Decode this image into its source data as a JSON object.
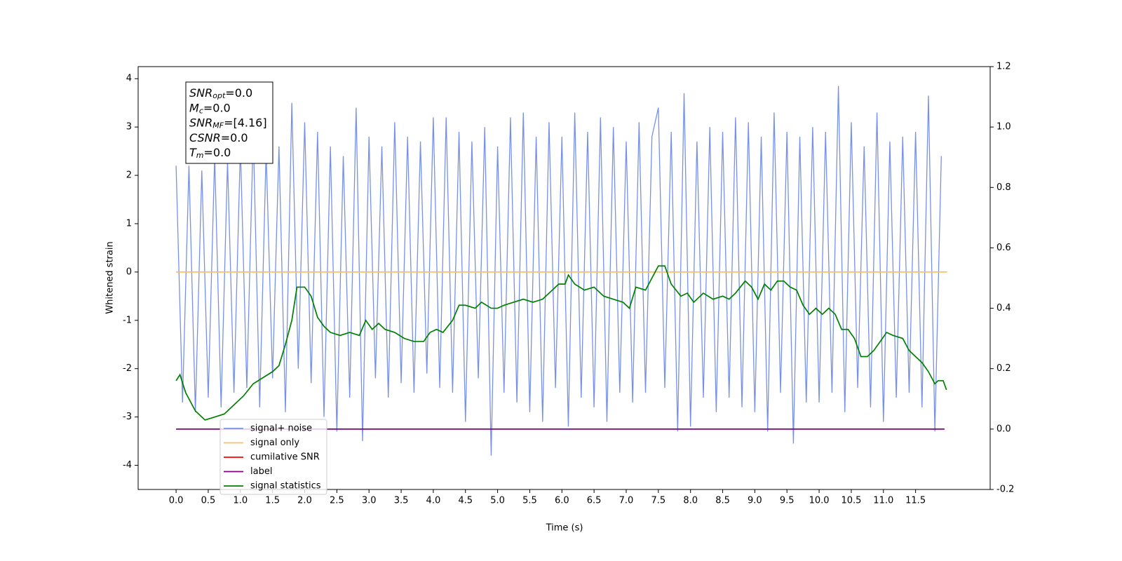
{
  "chart_data": {
    "type": "line",
    "xlabel": "Time (s)",
    "ylabel": "Whitened strain",
    "xlim": [
      -0.59,
      12.66
    ],
    "ylim": [
      -4.5,
      4.25
    ],
    "y2lim": [
      -0.2,
      1.2
    ],
    "xticks": [
      {
        "value": 0,
        "label": "0.0"
      },
      0.5,
      {
        "value": 1,
        "label": "1.0"
      },
      1.5,
      {
        "value": 2,
        "label": "2.0"
      },
      2.5,
      {
        "value": 3,
        "label": "3.0"
      },
      3.5,
      {
        "value": 4,
        "label": "4.0"
      },
      4.5,
      {
        "value": 5,
        "label": "5.0"
      },
      5.5,
      {
        "value": 6,
        "label": "6.0"
      },
      6.5,
      {
        "value": 7,
        "label": "7.0"
      },
      7.5,
      {
        "value": 8,
        "label": "8.0"
      },
      8.5,
      {
        "value": 9,
        "label": "9.0"
      },
      9.5,
      {
        "value": 10,
        "label": "10.0"
      },
      10.5,
      {
        "value": 11,
        "label": "11.0"
      },
      11.5
    ],
    "yticks": [
      -4,
      -3,
      -2,
      -1,
      0,
      1,
      2,
      3,
      4
    ],
    "y2ticks": [
      -0.2,
      {
        "value": 0,
        "label": "0.0"
      },
      0.2,
      0.4,
      0.6,
      0.8,
      {
        "value": 1,
        "label": "1.0"
      },
      1.2
    ],
    "annotation": [
      [
        "SNR",
        "opt",
        "=0.0"
      ],
      [
        "M",
        "c",
        "=0.0"
      ],
      [
        "SNR",
        "MF",
        "=[4.16]"
      ],
      [
        "CSNR",
        "=0.0"
      ],
      [
        "T",
        "m",
        "=0.0"
      ]
    ],
    "series": [
      {
        "name": "signal+ noise",
        "color": "#7891e8",
        "x": [
          0,
          0.1,
          0.2,
          0.3,
          0.4,
          0.5,
          0.6,
          0.7,
          0.8,
          0.9,
          1,
          1.1,
          1.2,
          1.3,
          1.4,
          1.5,
          1.6,
          1.7,
          1.8,
          1.9,
          2,
          2.1,
          2.2,
          2.3,
          2.4,
          2.5,
          2.6,
          2.7,
          2.8,
          2.9,
          3,
          3.1,
          3.2,
          3.3,
          3.4,
          3.5,
          3.6,
          3.7,
          3.8,
          3.9,
          4,
          4.1,
          4.2,
          4.3,
          4.4,
          4.5,
          4.6,
          4.7,
          4.8,
          4.9,
          5,
          5.1,
          5.2,
          5.3,
          5.4,
          5.5,
          5.6,
          5.7,
          5.8,
          5.9,
          6,
          6.1,
          6.2,
          6.3,
          6.4,
          6.5,
          6.6,
          6.7,
          6.8,
          6.9,
          7,
          7.1,
          7.2,
          7.3,
          7.4,
          7.5,
          7.6,
          7.7,
          7.8,
          7.9,
          8,
          8.1,
          8.2,
          8.3,
          8.4,
          8.5,
          8.6,
          8.7,
          8.8,
          8.9,
          9,
          9.1,
          9.2,
          9.3,
          9.4,
          9.5,
          9.6,
          9.7,
          9.8,
          9.9,
          10,
          10.1,
          10.2,
          10.3,
          10.4,
          10.5,
          10.6,
          10.7,
          10.8,
          10.9,
          11,
          11.1,
          11.2,
          11.3,
          11.4,
          11.5,
          11.6,
          11.7,
          11.8,
          11.9
        ],
        "values": [
          2.2,
          -2.7,
          2.2,
          -2.9,
          2.1,
          -2.6,
          2.4,
          -2.8,
          2.3,
          -2.5,
          2.6,
          -2.4,
          2.9,
          -2.8,
          2.5,
          -2.2,
          2.6,
          -2.9,
          3.5,
          -2.0,
          3.1,
          -2.3,
          2.9,
          -3.0,
          2.6,
          -3.3,
          2.4,
          -2.6,
          3.4,
          -3.5,
          2.8,
          -2.2,
          2.6,
          -2.6,
          3.1,
          -2.3,
          2.8,
          -2.5,
          2.7,
          -2.1,
          3.2,
          -2.4,
          3.2,
          -2.5,
          2.9,
          -3.1,
          2.7,
          -2.2,
          3.0,
          -3.8,
          2.6,
          -2.5,
          3.2,
          -2.7,
          3.3,
          -2.9,
          2.8,
          -3.1,
          3.1,
          -2.4,
          2.8,
          -3.2,
          3.3,
          -2.6,
          2.9,
          -2.8,
          3.2,
          -3.1,
          3.0,
          -2.5,
          2.7,
          -2.7,
          3.1,
          -2.5,
          2.8,
          3.4,
          -2.4,
          2.9,
          -3.3,
          3.7,
          -3.2,
          2.7,
          -2.6,
          3.0,
          -2.9,
          2.9,
          -2.6,
          3.2,
          -2.8,
          3.1,
          -2.9,
          2.8,
          -3.3,
          3.3,
          -2.5,
          2.9,
          -3.55,
          2.8,
          -2.7,
          3.0,
          -2.7,
          2.9,
          -2.5,
          3.85,
          -2.9,
          3.1,
          -2.4,
          2.6,
          -2.8,
          3.3,
          -3.1,
          2.7,
          -2.6,
          2.8,
          -2.5,
          2.9,
          -2.8,
          3.65,
          -3.3,
          2.4
        ]
      },
      {
        "name": "signal only",
        "color": "#ffbf60",
        "x": [
          0,
          11.99
        ],
        "values": [
          0,
          0
        ]
      },
      {
        "name": "cumilative SNR",
        "color": "#ff0000"
      },
      {
        "name": "label",
        "color": "#800080",
        "axis": "y2",
        "x": [
          0,
          11.95
        ],
        "values": [
          0,
          0
        ]
      },
      {
        "name": "signal statistics",
        "color": "#008000",
        "axis": "y2",
        "x": [
          0,
          0.06,
          0.15,
          0.3,
          0.45,
          0.6,
          0.75,
          0.9,
          1.05,
          1.2,
          1.35,
          1.5,
          1.6,
          1.7,
          1.8,
          1.88,
          1.95,
          2,
          2.1,
          2.2,
          2.3,
          2.4,
          2.55,
          2.7,
          2.85,
          2.95,
          3.05,
          3.15,
          3.25,
          3.4,
          3.55,
          3.7,
          3.85,
          3.95,
          4.05,
          4.15,
          4.3,
          4.4,
          4.5,
          4.65,
          4.75,
          4.9,
          5,
          5.1,
          5.25,
          5.4,
          5.55,
          5.7,
          5.85,
          5.95,
          6.05,
          6.1,
          6.2,
          6.35,
          6.5,
          6.65,
          6.8,
          6.95,
          7.05,
          7.15,
          7.3,
          7.4,
          7.5,
          7.6,
          7.7,
          7.85,
          7.95,
          8.05,
          8.2,
          8.35,
          8.5,
          8.6,
          8.7,
          8.85,
          8.95,
          9.05,
          9.15,
          9.25,
          9.35,
          9.45,
          9.55,
          9.65,
          9.75,
          9.85,
          9.95,
          10.05,
          10.15,
          10.25,
          10.35,
          10.45,
          10.55,
          10.65,
          10.75,
          10.85,
          10.95,
          11.05,
          11.15,
          11.3,
          11.4,
          11.5,
          11.6,
          11.7,
          11.8,
          11.85,
          11.93,
          11.98
        ],
        "values": [
          0.16,
          0.18,
          0.12,
          0.06,
          0.03,
          0.04,
          0.05,
          0.08,
          0.11,
          0.15,
          0.17,
          0.19,
          0.21,
          0.28,
          0.36,
          0.47,
          0.47,
          0.47,
          0.44,
          0.37,
          0.34,
          0.32,
          0.31,
          0.32,
          0.31,
          0.36,
          0.33,
          0.35,
          0.33,
          0.32,
          0.3,
          0.29,
          0.29,
          0.32,
          0.33,
          0.32,
          0.36,
          0.41,
          0.41,
          0.4,
          0.42,
          0.4,
          0.4,
          0.41,
          0.42,
          0.43,
          0.42,
          0.43,
          0.46,
          0.48,
          0.48,
          0.51,
          0.48,
          0.46,
          0.47,
          0.44,
          0.43,
          0.42,
          0.4,
          0.47,
          0.46,
          0.5,
          0.54,
          0.54,
          0.48,
          0.44,
          0.45,
          0.42,
          0.45,
          0.43,
          0.44,
          0.43,
          0.45,
          0.49,
          0.47,
          0.43,
          0.48,
          0.46,
          0.49,
          0.49,
          0.47,
          0.46,
          0.41,
          0.38,
          0.4,
          0.38,
          0.4,
          0.38,
          0.33,
          0.33,
          0.3,
          0.24,
          0.24,
          0.26,
          0.29,
          0.32,
          0.31,
          0.3,
          0.26,
          0.24,
          0.22,
          0.19,
          0.15,
          0.16,
          0.16,
          0.13
        ]
      }
    ]
  }
}
